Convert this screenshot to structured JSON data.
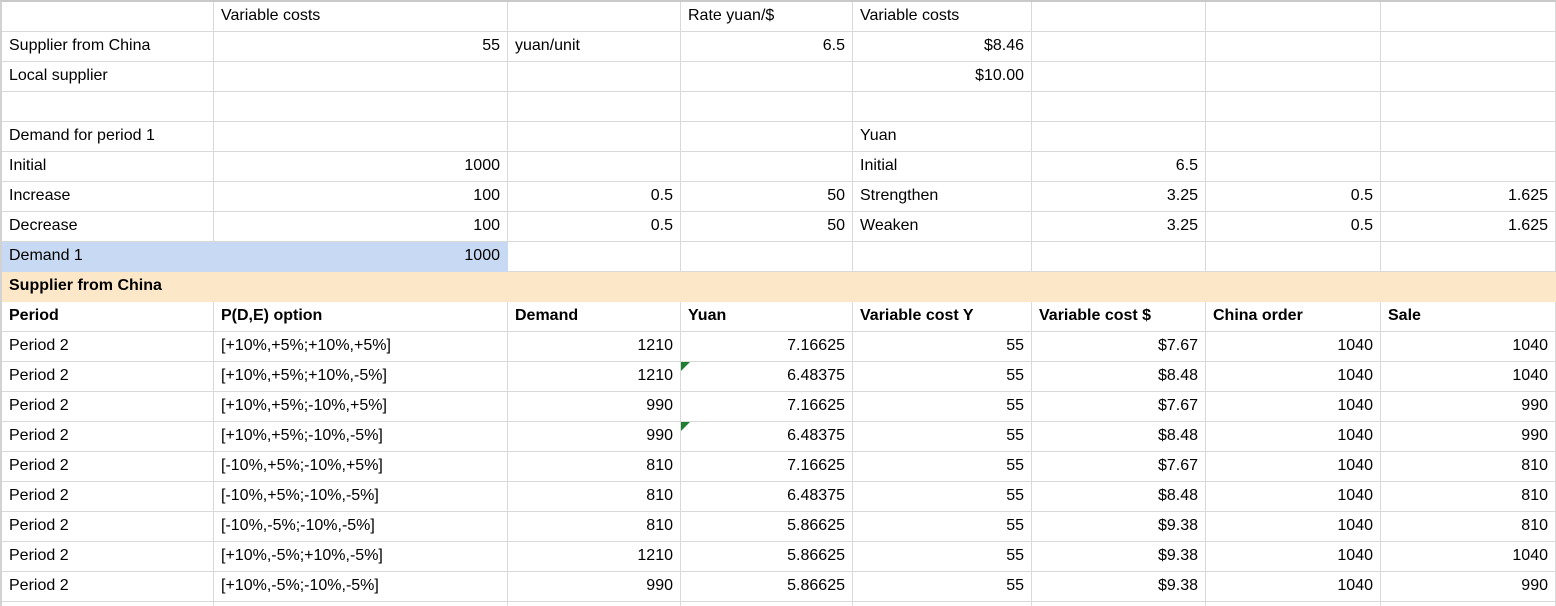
{
  "colors": {
    "section_bg": "#fce8c9",
    "highlight_bg": "#c8d9f3",
    "grid": "#d9d9d9",
    "note_green": "#1e7e34",
    "text": "#000000"
  },
  "sheet": {
    "rows": [
      {
        "cells": [
          null,
          {
            "t": "Variable costs"
          },
          null,
          {
            "t": "Rate yuan/$"
          },
          {
            "t": "Variable costs"
          },
          null,
          null,
          null
        ]
      },
      {
        "cells": [
          {
            "t": "Supplier from China"
          },
          {
            "t": "55",
            "al": "r"
          },
          {
            "t": "yuan/unit"
          },
          {
            "t": "6.5",
            "al": "r"
          },
          {
            "t": "$8.46",
            "al": "r"
          },
          null,
          null,
          null
        ]
      },
      {
        "cells": [
          {
            "t": "Local supplier"
          },
          null,
          null,
          null,
          {
            "t": "$10.00",
            "al": "r"
          },
          null,
          null,
          null
        ]
      },
      {
        "cells": [
          null,
          null,
          null,
          null,
          null,
          null,
          null,
          null
        ]
      },
      {
        "cells": [
          {
            "t": "Demand for period 1"
          },
          null,
          null,
          null,
          {
            "t": "Yuan"
          },
          null,
          null,
          null
        ]
      },
      {
        "cells": [
          {
            "t": "Initial"
          },
          {
            "t": "1000",
            "al": "r"
          },
          null,
          null,
          {
            "t": "Initial"
          },
          {
            "t": "6.5",
            "al": "r"
          },
          null,
          null
        ]
      },
      {
        "cells": [
          {
            "t": "Increase"
          },
          {
            "t": "100",
            "al": "r"
          },
          {
            "t": "0.5",
            "al": "r"
          },
          {
            "t": "50",
            "al": "r"
          },
          {
            "t": "Strengthen"
          },
          {
            "t": "3.25",
            "al": "r"
          },
          {
            "t": "0.5",
            "al": "r"
          },
          {
            "t": "1.625",
            "al": "r"
          }
        ]
      },
      {
        "cells": [
          {
            "t": "Decrease"
          },
          {
            "t": "100",
            "al": "r"
          },
          {
            "t": "0.5",
            "al": "r"
          },
          {
            "t": "50",
            "al": "r"
          },
          {
            "t": "Weaken"
          },
          {
            "t": "3.25",
            "al": "r"
          },
          {
            "t": "0.5",
            "al": "r"
          },
          {
            "t": "1.625",
            "al": "r"
          }
        ]
      },
      {
        "cells": [
          {
            "t": "Demand 1",
            "bg": "hl"
          },
          {
            "t": "1000",
            "al": "r",
            "bg": "hl"
          },
          null,
          null,
          null,
          null,
          null,
          null
        ]
      },
      {
        "cells": [
          {
            "t": "Supplier from China",
            "b": true,
            "bg": "sec"
          },
          {
            "bg": "sec"
          },
          {
            "bg": "sec"
          },
          {
            "bg": "sec"
          },
          {
            "bg": "sec"
          },
          {
            "bg": "sec"
          },
          {
            "bg": "sec"
          },
          {
            "bg": "sec"
          }
        ]
      },
      {
        "cells": [
          {
            "t": "Period",
            "b": true
          },
          {
            "t": "P(D,E) option",
            "b": true
          },
          {
            "t": "Demand",
            "b": true
          },
          {
            "t": "Yuan",
            "b": true
          },
          {
            "t": "Variable cost Y",
            "b": true
          },
          {
            "t": "Variable cost $",
            "b": true
          },
          {
            "t": "China order",
            "b": true
          },
          {
            "t": "Sale",
            "b": true
          }
        ]
      },
      {
        "cells": [
          {
            "t": "Period 2"
          },
          {
            "t": "[+10%,+5%;+10%,+5%]"
          },
          {
            "t": "1210",
            "al": "r"
          },
          {
            "t": "7.16625",
            "al": "r"
          },
          {
            "t": "55",
            "al": "r"
          },
          {
            "t": "$7.67",
            "al": "r"
          },
          {
            "t": "1040",
            "al": "r"
          },
          {
            "t": "1040",
            "al": "r"
          }
        ]
      },
      {
        "cells": [
          {
            "t": "Period 2"
          },
          {
            "t": "[+10%,+5%;+10%,-5%]"
          },
          {
            "t": "1210",
            "al": "r"
          },
          {
            "t": "6.48375",
            "al": "r",
            "note": true
          },
          {
            "t": "55",
            "al": "r"
          },
          {
            "t": "$8.48",
            "al": "r"
          },
          {
            "t": "1040",
            "al": "r"
          },
          {
            "t": "1040",
            "al": "r"
          }
        ]
      },
      {
        "cells": [
          {
            "t": "Period 2"
          },
          {
            "t": "[+10%,+5%;-10%,+5%]"
          },
          {
            "t": "990",
            "al": "r"
          },
          {
            "t": "7.16625",
            "al": "r"
          },
          {
            "t": "55",
            "al": "r"
          },
          {
            "t": "$7.67",
            "al": "r"
          },
          {
            "t": "1040",
            "al": "r"
          },
          {
            "t": "990",
            "al": "r"
          }
        ]
      },
      {
        "cells": [
          {
            "t": "Period 2"
          },
          {
            "t": "[+10%,+5%;-10%,-5%]"
          },
          {
            "t": "990",
            "al": "r"
          },
          {
            "t": "6.48375",
            "al": "r",
            "note": true
          },
          {
            "t": "55",
            "al": "r"
          },
          {
            "t": "$8.48",
            "al": "r"
          },
          {
            "t": "1040",
            "al": "r"
          },
          {
            "t": "990",
            "al": "r"
          }
        ]
      },
      {
        "cells": [
          {
            "t": "Period 2"
          },
          {
            "t": "[-10%,+5%;-10%,+5%]"
          },
          {
            "t": "810",
            "al": "r"
          },
          {
            "t": "7.16625",
            "al": "r"
          },
          {
            "t": "55",
            "al": "r"
          },
          {
            "t": "$7.67",
            "al": "r"
          },
          {
            "t": "1040",
            "al": "r"
          },
          {
            "t": "810",
            "al": "r"
          }
        ]
      },
      {
        "cells": [
          {
            "t": "Period 2"
          },
          {
            "t": "[-10%,+5%;-10%,-5%]"
          },
          {
            "t": "810",
            "al": "r"
          },
          {
            "t": "6.48375",
            "al": "r"
          },
          {
            "t": "55",
            "al": "r"
          },
          {
            "t": "$8.48",
            "al": "r"
          },
          {
            "t": "1040",
            "al": "r"
          },
          {
            "t": "810",
            "al": "r"
          }
        ]
      },
      {
        "cells": [
          {
            "t": "Period 2"
          },
          {
            "t": "[-10%,-5%;-10%,-5%]"
          },
          {
            "t": "810",
            "al": "r"
          },
          {
            "t": "5.86625",
            "al": "r"
          },
          {
            "t": "55",
            "al": "r"
          },
          {
            "t": "$9.38",
            "al": "r"
          },
          {
            "t": "1040",
            "al": "r"
          },
          {
            "t": "810",
            "al": "r"
          }
        ]
      },
      {
        "cells": [
          {
            "t": "Period 2"
          },
          {
            "t": "[+10%,-5%;+10%,-5%]"
          },
          {
            "t": "1210",
            "al": "r"
          },
          {
            "t": "5.86625",
            "al": "r"
          },
          {
            "t": "55",
            "al": "r"
          },
          {
            "t": "$9.38",
            "al": "r"
          },
          {
            "t": "1040",
            "al": "r"
          },
          {
            "t": "1040",
            "al": "r"
          }
        ]
      },
      {
        "cells": [
          {
            "t": "Period 2"
          },
          {
            "t": "[+10%,-5%;-10%,-5%]"
          },
          {
            "t": "990",
            "al": "r"
          },
          {
            "t": "5.86625",
            "al": "r"
          },
          {
            "t": "55",
            "al": "r"
          },
          {
            "t": "$9.38",
            "al": "r"
          },
          {
            "t": "1040",
            "al": "r"
          },
          {
            "t": "990",
            "al": "r"
          }
        ]
      },
      {
        "cells": [
          null,
          null,
          null,
          null,
          null,
          null,
          null,
          null
        ]
      }
    ]
  }
}
